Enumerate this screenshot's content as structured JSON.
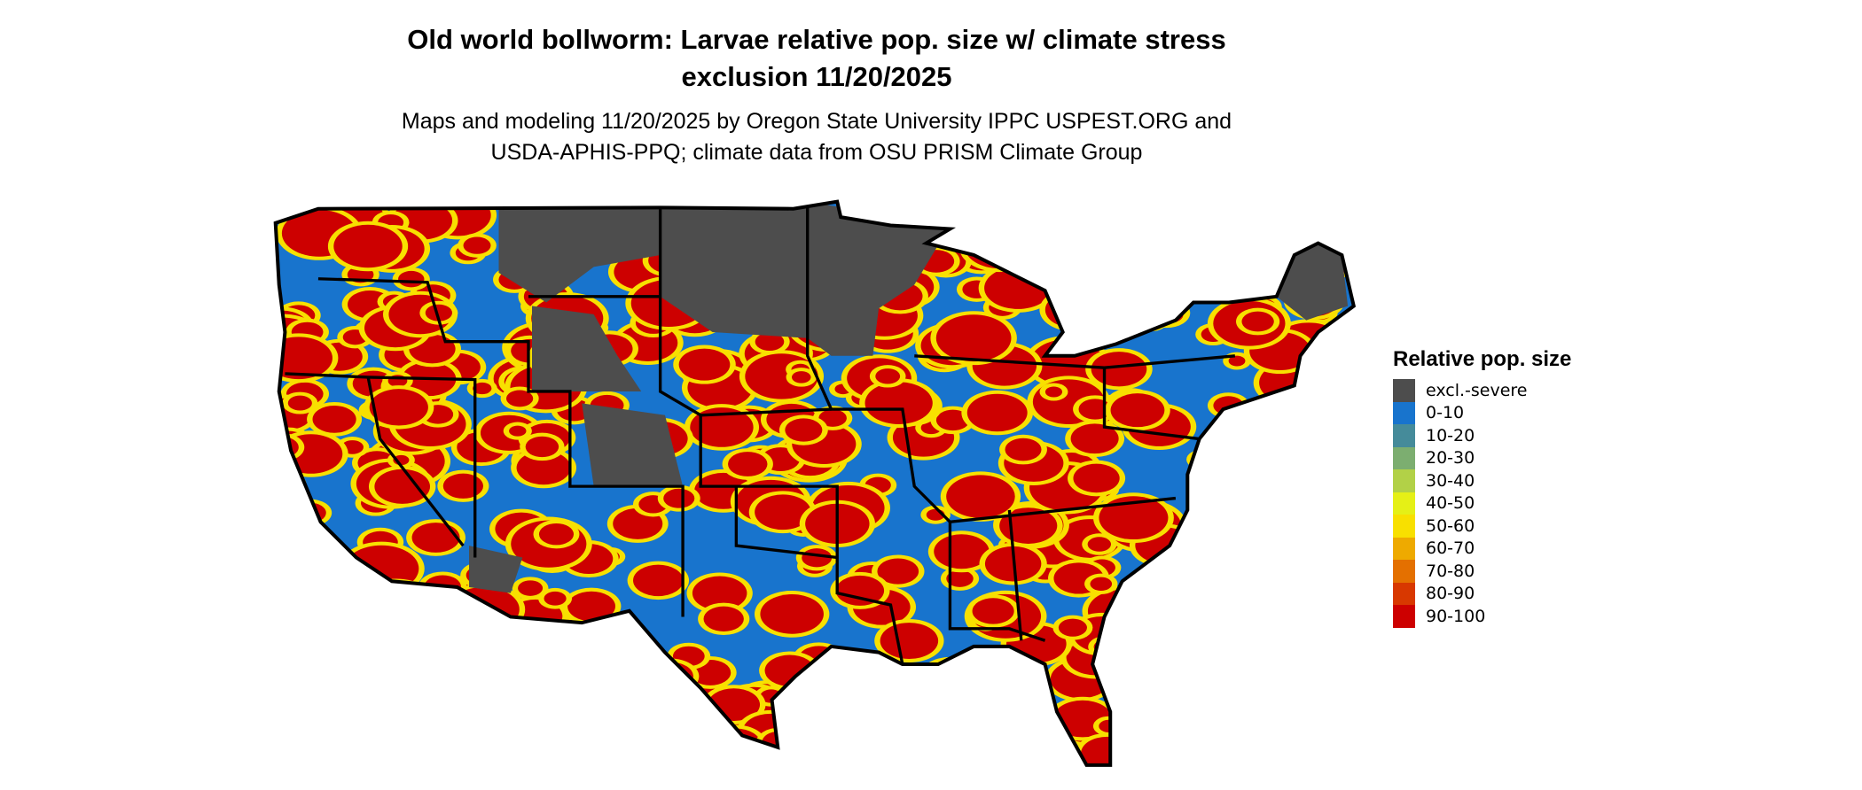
{
  "title": [
    "Old world bollworm: Larvae relative pop. size w/ climate stress",
    "exclusion 11/20/2025"
  ],
  "subtitle": [
    "Maps and modeling 11/20/2025 by Oregon State University IPPC USPEST.ORG and",
    "USDA-APHIS-PPQ; climate data from OSU PRISM Climate Group"
  ],
  "legend": {
    "title": "Relative pop. size",
    "items": [
      {
        "label": "excl.-severe",
        "color": "#4d4d4d"
      },
      {
        "label": "0-10",
        "color": "#1874cd"
      },
      {
        "label": "10-20",
        "color": "#458b9a"
      },
      {
        "label": "20-30",
        "color": "#7cae70"
      },
      {
        "label": "30-40",
        "color": "#b2d147"
      },
      {
        "label": "40-50",
        "color": "#e5f016"
      },
      {
        "label": "50-60",
        "color": "#f8e000"
      },
      {
        "label": "60-70",
        "color": "#eeaa00"
      },
      {
        "label": "70-80",
        "color": "#e47000"
      },
      {
        "label": "80-90",
        "color": "#d83800"
      },
      {
        "label": "90-100",
        "color": "#cd0000"
      }
    ]
  }
}
